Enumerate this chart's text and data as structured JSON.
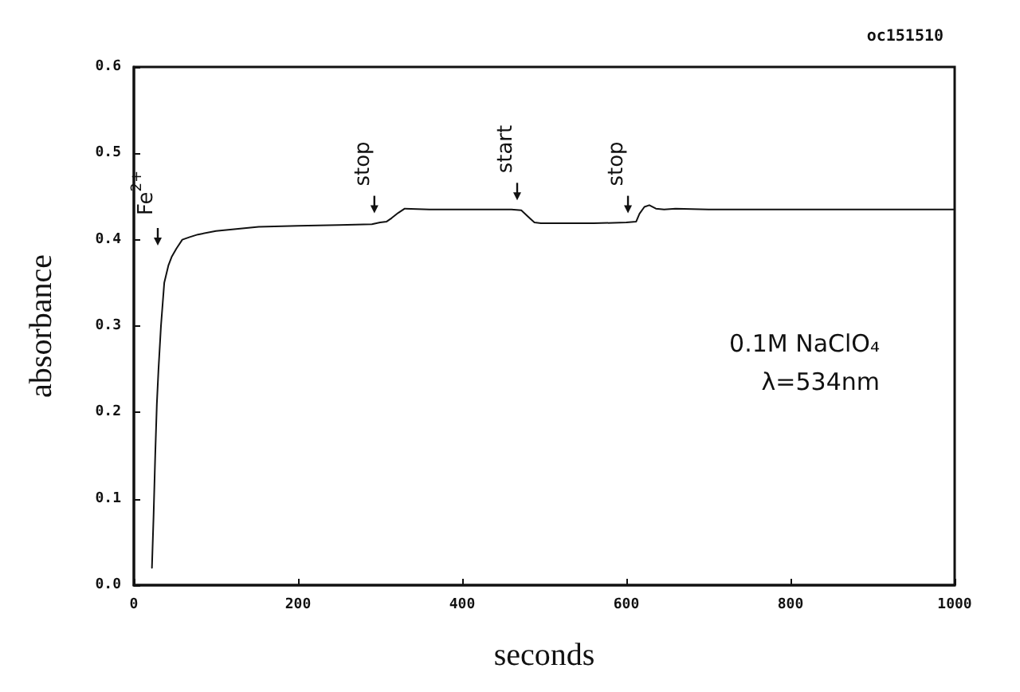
{
  "chart_data": {
    "type": "line",
    "xlabel": "seconds",
    "ylabel": "absorbance",
    "xlim": [
      0,
      1000
    ],
    "xticks": [
      0,
      200,
      400,
      600,
      800,
      1000
    ],
    "ylim": [
      0,
      0.6
    ],
    "yticks": [
      {
        "value": 0,
        "label": "0.0"
      },
      {
        "value": 0.1,
        "label": "0.1"
      },
      {
        "value": 0.2,
        "label": "0.2"
      },
      {
        "value": 0.3,
        "label": "0.3"
      },
      {
        "value": 0.4,
        "label": "0.4"
      },
      {
        "value": 0.5,
        "label": "0.5"
      },
      {
        "value": 0.6,
        "label": "0.6"
      }
    ],
    "grid": false,
    "marker": "none",
    "line_style": "solid",
    "series": [
      {
        "color": "#111111",
        "x": [
          22,
          24,
          26,
          28,
          30,
          33,
          37,
          42,
          46,
          52,
          59,
          68,
          78,
          100,
          152,
          200,
          250,
          290,
          300,
          308,
          314,
          322,
          330,
          360,
          400,
          430,
          460,
          472,
          480,
          488,
          496,
          520,
          560,
          600,
          612,
          616,
          622,
          628,
          636,
          646,
          660,
          700,
          800,
          900,
          1000
        ],
        "values": [
          0.02,
          0.08,
          0.15,
          0.21,
          0.25,
          0.3,
          0.35,
          0.37,
          0.38,
          0.39,
          0.4,
          0.403,
          0.406,
          0.41,
          0.415,
          0.416,
          0.417,
          0.418,
          0.42,
          0.421,
          0.425,
          0.431,
          0.436,
          0.435,
          0.435,
          0.435,
          0.435,
          0.434,
          0.427,
          0.42,
          0.419,
          0.419,
          0.419,
          0.42,
          0.421,
          0.43,
          0.438,
          0.44,
          0.436,
          0.435,
          0.436,
          0.435,
          0.435,
          0.435,
          0.435
        ]
      }
    ],
    "annotations": [
      "Fe$^{2+}$",
      {
        "text": "stop",
        "x": 293,
        "y": 0.425
      },
      {
        "text": "start",
        "x": 467,
        "y": 0.44
      },
      {
        "text": "stop",
        "x": 602,
        "y": 0.425
      },
      "0.1M NaClO₄",
      "λ=534nm",
      "oc151510"
    ]
  }
}
